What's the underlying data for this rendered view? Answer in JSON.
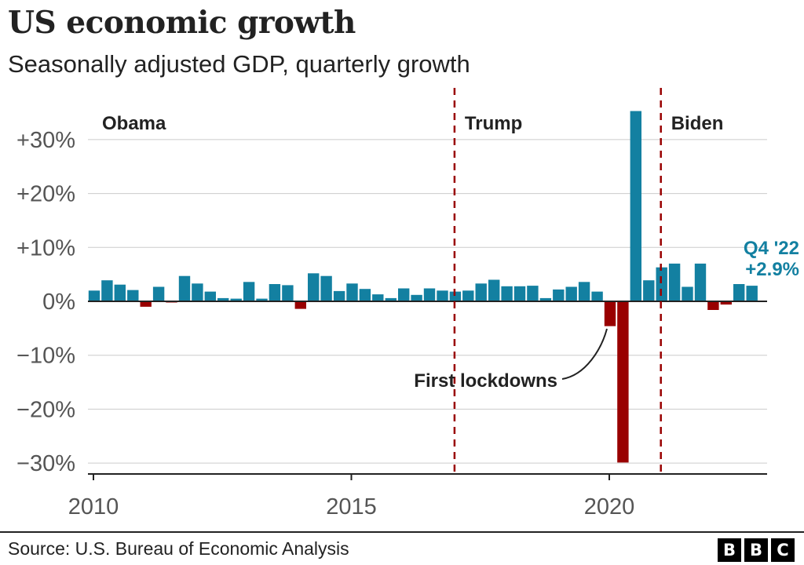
{
  "title": "US economic growth",
  "subtitle": "Seasonally adjusted GDP, quarterly growth",
  "source": "Source: U.S. Bureau of Economic Analysis",
  "logo": {
    "letters": [
      "B",
      "B",
      "C"
    ]
  },
  "colors": {
    "positive": "#1380A1",
    "negative": "#990000",
    "divider": "#990000",
    "grid": "#cccccc",
    "text": "#222222"
  },
  "chart_data": {
    "type": "bar",
    "x_start": "2010-Q1",
    "quarters": [
      "2010-Q1",
      "2010-Q2",
      "2010-Q3",
      "2010-Q4",
      "2011-Q1",
      "2011-Q2",
      "2011-Q3",
      "2011-Q4",
      "2012-Q1",
      "2012-Q2",
      "2012-Q3",
      "2012-Q4",
      "2013-Q1",
      "2013-Q2",
      "2013-Q3",
      "2013-Q4",
      "2014-Q1",
      "2014-Q2",
      "2014-Q3",
      "2014-Q4",
      "2015-Q1",
      "2015-Q2",
      "2015-Q3",
      "2015-Q4",
      "2016-Q1",
      "2016-Q2",
      "2016-Q3",
      "2016-Q4",
      "2017-Q1",
      "2017-Q2",
      "2017-Q3",
      "2017-Q4",
      "2018-Q1",
      "2018-Q2",
      "2018-Q3",
      "2018-Q4",
      "2019-Q1",
      "2019-Q2",
      "2019-Q3",
      "2019-Q4",
      "2020-Q1",
      "2020-Q2",
      "2020-Q3",
      "2020-Q4",
      "2021-Q1",
      "2021-Q2",
      "2021-Q3",
      "2021-Q4",
      "2022-Q1",
      "2022-Q2",
      "2022-Q3",
      "2022-Q4"
    ],
    "values": [
      2.0,
      3.9,
      3.1,
      2.1,
      -1.0,
      2.7,
      -0.1,
      4.7,
      3.3,
      1.8,
      0.6,
      0.5,
      3.6,
      0.5,
      3.2,
      3.0,
      -1.4,
      5.2,
      4.7,
      1.9,
      3.3,
      2.3,
      1.3,
      0.6,
      2.4,
      1.2,
      2.4,
      2.0,
      1.8,
      2.0,
      3.3,
      4.0,
      2.8,
      2.8,
      2.9,
      0.6,
      2.2,
      2.7,
      3.6,
      1.8,
      -4.6,
      -29.9,
      35.3,
      3.9,
      6.3,
      7.0,
      2.7,
      7.0,
      -1.6,
      -0.6,
      3.2,
      2.9
    ],
    "y_ticks": [
      -30,
      -20,
      -10,
      0,
      10,
      20,
      30
    ],
    "y_tick_labels": [
      "−30%",
      "−20%",
      "−10%",
      "0%",
      "+10%",
      "+20%",
      "+30%"
    ],
    "ylim": [
      -32,
      37
    ],
    "x_ticks": [
      2010,
      2015,
      2020
    ],
    "x_tick_labels": [
      "2010",
      "2015",
      "2020"
    ],
    "xlim": [
      2010.0,
      2023.0
    ],
    "grid": true,
    "eras": [
      {
        "label": "Obama",
        "start": 2010.0
      },
      {
        "label": "Trump",
        "start": 2017.0
      },
      {
        "label": "Biden",
        "start": 2021.0
      }
    ],
    "annotations": {
      "lockdowns": {
        "text": "First lockdowns",
        "quarter": "2020-Q1"
      },
      "latest": {
        "line1": "Q4 '22",
        "line2": "+2.9%"
      }
    }
  }
}
